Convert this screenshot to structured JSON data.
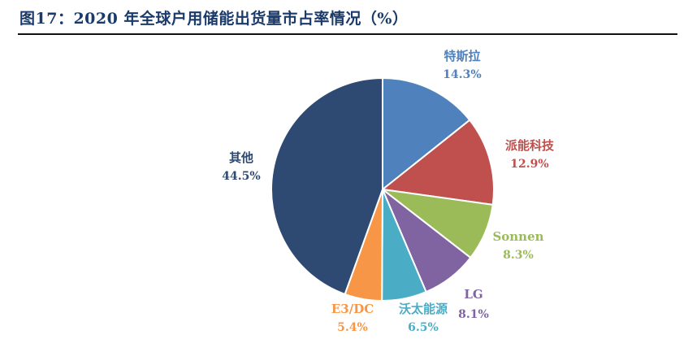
{
  "figure": {
    "title": "图17：2020 年全球户用储能出货量市占率情况（%）"
  },
  "chart_data": {
    "type": "pie",
    "title": "图17：2020 年全球户用储能出货量市占率情况（%）",
    "unit": "%",
    "slices": [
      {
        "name": "特斯拉",
        "value": 14.3,
        "label": "14.3%",
        "color": "#4f81bd"
      },
      {
        "name": "派能科技",
        "value": 12.9,
        "label": "12.9%",
        "color": "#c0504d"
      },
      {
        "name": "Sonnen",
        "value": 8.3,
        "label": "8.3%",
        "color": "#9bbb59"
      },
      {
        "name": "LG",
        "value": 8.1,
        "label": "8.1%",
        "color": "#8064a2"
      },
      {
        "name": "沃太能源",
        "value": 6.5,
        "label": "6.5%",
        "color": "#4bacc6"
      },
      {
        "name": "E3/DC",
        "value": 5.4,
        "label": "5.4%",
        "color": "#f79646"
      },
      {
        "name": "其他",
        "value": 44.5,
        "label": "44.5%",
        "color": "#2e4a73"
      }
    ]
  }
}
